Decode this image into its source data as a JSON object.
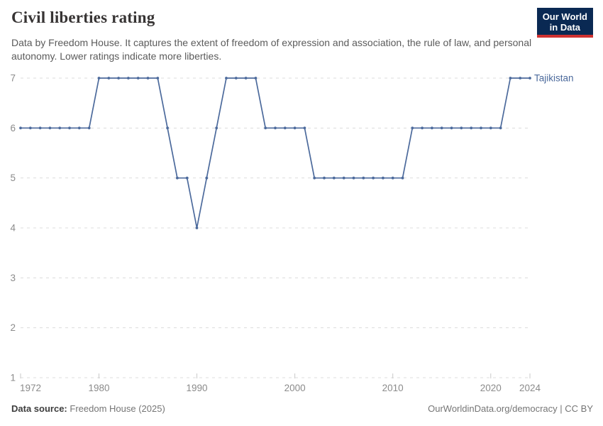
{
  "header": {
    "title": "Civil liberties rating",
    "subtitle": "Data by Freedom House. It captures the extent of freedom of expression and association, the rule of law, and personal autonomy. Lower ratings indicate more liberties.",
    "logo": {
      "line1": "Our World",
      "line2": "in Data"
    }
  },
  "chart_data": {
    "type": "line",
    "title": "Civil liberties rating",
    "xlabel": "",
    "ylabel": "",
    "xlim": [
      1972,
      2024
    ],
    "ylim": [
      1,
      7
    ],
    "x_ticks": [
      1972,
      1980,
      1990,
      2000,
      2010,
      2020,
      2024
    ],
    "y_ticks": [
      1,
      2,
      3,
      4,
      5,
      6,
      7
    ],
    "grid": "horizontal-dashed",
    "legend_position": "end-of-line-label",
    "series": [
      {
        "name": "Tajikistan",
        "color": "#4c6a9c",
        "x": [
          1972,
          1973,
          1974,
          1975,
          1976,
          1977,
          1978,
          1979,
          1980,
          1981,
          1982,
          1983,
          1984,
          1985,
          1986,
          1987,
          1988,
          1989,
          1990,
          1991,
          1992,
          1993,
          1994,
          1995,
          1996,
          1997,
          1998,
          1999,
          2000,
          2001,
          2002,
          2003,
          2004,
          2005,
          2006,
          2007,
          2008,
          2009,
          2010,
          2011,
          2012,
          2013,
          2014,
          2015,
          2016,
          2017,
          2018,
          2019,
          2020,
          2021,
          2022,
          2023,
          2024
        ],
        "values": [
          6,
          6,
          6,
          6,
          6,
          6,
          6,
          6,
          7,
          7,
          7,
          7,
          7,
          7,
          7,
          6,
          5,
          5,
          4,
          5,
          6,
          7,
          7,
          7,
          7,
          6,
          6,
          6,
          6,
          6,
          5,
          5,
          5,
          5,
          5,
          5,
          5,
          5,
          5,
          5,
          6,
          6,
          6,
          6,
          6,
          6,
          6,
          6,
          6,
          6,
          7,
          7,
          7
        ]
      }
    ]
  },
  "footer": {
    "source_label": "Data source:",
    "source_value": "Freedom House (2025)",
    "credit": "OurWorldinData.org/democracy | CC BY"
  },
  "colors": {
    "line": "#4c6a9c",
    "axis_text": "#8b8b8b",
    "grid": "#dcdcdc",
    "tick": "#c9c9c9",
    "logo_bg": "#0a2953",
    "logo_accent": "#cf3130"
  }
}
